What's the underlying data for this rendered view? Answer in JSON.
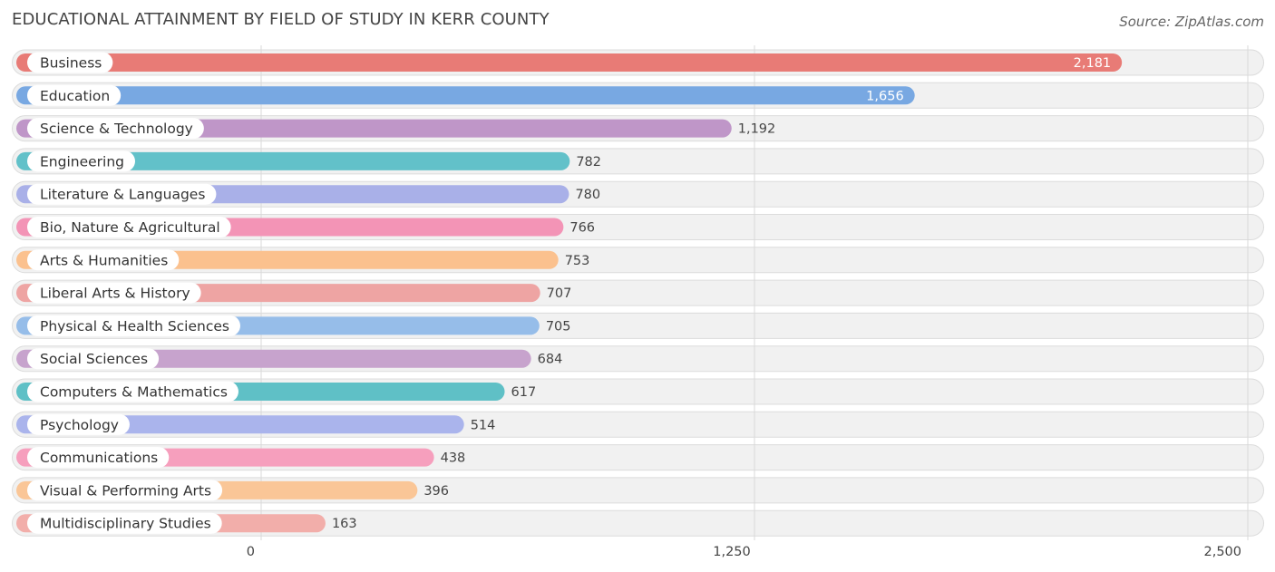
{
  "title": "EDUCATIONAL ATTAINMENT BY FIELD OF STUDY IN KERR COUNTY",
  "source": "Source: ZipAtlas.com",
  "chart_data": {
    "type": "bar",
    "orientation": "horizontal",
    "title": "EDUCATIONAL ATTAINMENT BY FIELD OF STUDY IN KERR COUNTY",
    "xlabel": "",
    "ylabel": "",
    "xlim": [
      0,
      2500
    ],
    "ticks": [
      0,
      1250,
      2500
    ],
    "tick_labels": [
      "0",
      "1,250",
      "2,500"
    ],
    "grid": true,
    "categories": [
      "Business",
      "Education",
      "Science & Technology",
      "Engineering",
      "Literature & Languages",
      "Bio, Nature & Agricultural",
      "Arts & Humanities",
      "Liberal Arts & History",
      "Physical & Health Sciences",
      "Social Sciences",
      "Computers & Mathematics",
      "Psychology",
      "Communications",
      "Visual & Performing Arts",
      "Multidisciplinary Studies"
    ],
    "values": [
      2181,
      1656,
      1192,
      782,
      780,
      766,
      753,
      707,
      705,
      684,
      617,
      514,
      438,
      396,
      163
    ],
    "value_labels": [
      "2,181",
      "1,656",
      "1,192",
      "782",
      "780",
      "766",
      "753",
      "707",
      "705",
      "684",
      "617",
      "514",
      "438",
      "396",
      "163"
    ],
    "colors": [
      "#e87b76",
      "#78a8e2",
      "#bf96c8",
      "#62c1c9",
      "#a9b0e8",
      "#f394b6",
      "#fbc18e",
      "#eea4a3",
      "#96bde9",
      "#c7a3cd",
      "#5fc0c6",
      "#aab4ec",
      "#f69fbd",
      "#fac697",
      "#f2aeaa"
    ]
  }
}
